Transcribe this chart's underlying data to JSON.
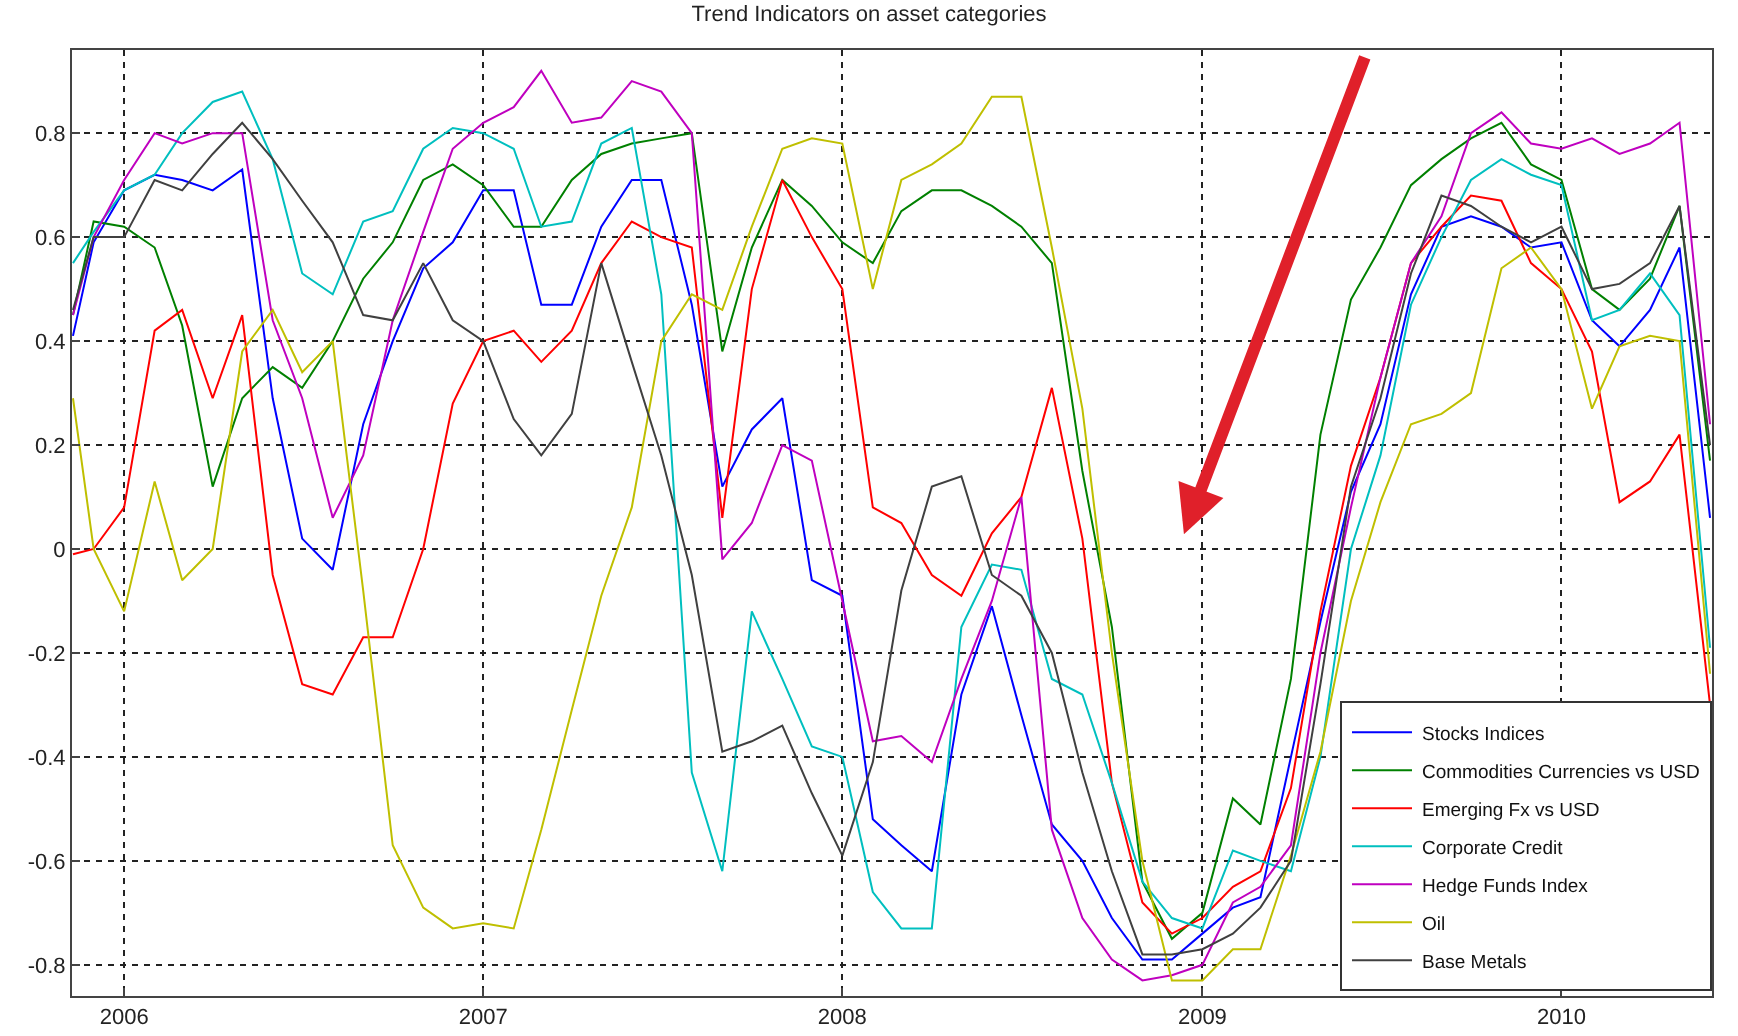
{
  "chart_data": {
    "type": "line",
    "title": "Trend Indicators on asset categories",
    "x": [
      "2005-11-10",
      "2005-12-01",
      "2006-01-01",
      "2006-02-01",
      "2006-03-01",
      "2006-04-01",
      "2006-05-01",
      "2006-06-01",
      "2006-07-01",
      "2006-08-01",
      "2006-09-01",
      "2006-10-01",
      "2006-11-01",
      "2006-12-01",
      "2007-01-01",
      "2007-02-01",
      "2007-03-01",
      "2007-04-01",
      "2007-05-01",
      "2007-06-01",
      "2007-07-01",
      "2007-08-01",
      "2007-09-01",
      "2007-10-01",
      "2007-11-01",
      "2007-12-01",
      "2008-01-01",
      "2008-02-01",
      "2008-03-01",
      "2008-04-01",
      "2008-05-01",
      "2008-06-01",
      "2008-07-01",
      "2008-08-01",
      "2008-09-01",
      "2008-10-01",
      "2008-11-01",
      "2008-12-01",
      "2009-01-01",
      "2009-02-01",
      "2009-03-01",
      "2009-04-01",
      "2009-05-01",
      "2009-06-01",
      "2009-07-01",
      "2009-08-01",
      "2009-09-01",
      "2009-10-01",
      "2009-11-01",
      "2009-12-01",
      "2010-01-01",
      "2010-02-01",
      "2010-03-01",
      "2010-04-01",
      "2010-05-01",
      "2010-06-01"
    ],
    "series": [
      {
        "name": "Stocks Indices",
        "color": "#0000ff",
        "values": [
          0.41,
          0.59,
          0.69,
          0.72,
          0.71,
          0.69,
          0.73,
          0.29,
          0.02,
          -0.04,
          0.24,
          0.4,
          0.54,
          0.59,
          0.69,
          0.69,
          0.47,
          0.47,
          0.62,
          0.71,
          0.71,
          0.47,
          0.12,
          0.23,
          0.29,
          -0.06,
          -0.09,
          -0.52,
          -0.57,
          -0.62,
          -0.28,
          -0.11,
          -0.32,
          -0.53,
          -0.6,
          -0.71,
          -0.79,
          -0.79,
          -0.74,
          -0.69,
          -0.67,
          -0.4,
          -0.14,
          0.11,
          0.24,
          0.49,
          0.62,
          0.64,
          0.62,
          0.58,
          0.59,
          0.44,
          0.39,
          0.46,
          0.58,
          0.06
        ]
      },
      {
        "name": "Commodities Currencies vs USD",
        "color": "#008000",
        "values": [
          0.45,
          0.63,
          0.62,
          0.58,
          0.43,
          0.12,
          0.29,
          0.35,
          0.31,
          0.4,
          0.52,
          0.59,
          0.71,
          0.74,
          0.7,
          0.62,
          0.62,
          0.71,
          0.76,
          0.78,
          0.79,
          0.8,
          0.38,
          0.58,
          0.71,
          0.66,
          0.59,
          0.55,
          0.65,
          0.69,
          0.69,
          0.66,
          0.62,
          0.55,
          0.15,
          -0.15,
          -0.64,
          -0.75,
          -0.7,
          -0.48,
          -0.53,
          -0.25,
          0.22,
          0.48,
          0.58,
          0.7,
          0.75,
          0.79,
          0.82,
          0.74,
          0.71,
          0.5,
          0.46,
          0.52,
          0.66,
          0.17
        ]
      },
      {
        "name": "Emerging Fx vs USD",
        "color": "#ff0000",
        "values": [
          -0.01,
          0.0,
          0.08,
          0.42,
          0.46,
          0.29,
          0.45,
          -0.05,
          -0.26,
          -0.28,
          -0.17,
          -0.17,
          0.0,
          0.28,
          0.4,
          0.42,
          0.36,
          0.42,
          0.55,
          0.63,
          0.6,
          0.58,
          0.06,
          0.5,
          0.71,
          0.6,
          0.5,
          0.08,
          0.05,
          -0.05,
          -0.09,
          0.03,
          0.1,
          0.31,
          0.02,
          -0.45,
          -0.68,
          -0.74,
          -0.71,
          -0.65,
          -0.62,
          -0.46,
          -0.12,
          0.16,
          0.33,
          0.55,
          0.62,
          0.68,
          0.67,
          0.55,
          0.5,
          0.38,
          0.09,
          0.13,
          0.22,
          -0.3
        ]
      },
      {
        "name": "Corporate Credit",
        "color": "#00bfbf",
        "values": [
          0.55,
          0.61,
          0.69,
          0.72,
          0.8,
          0.86,
          0.88,
          0.75,
          0.53,
          0.49,
          0.63,
          0.65,
          0.77,
          0.81,
          0.8,
          0.77,
          0.62,
          0.63,
          0.78,
          0.81,
          0.49,
          -0.43,
          -0.62,
          -0.12,
          -0.25,
          -0.38,
          -0.4,
          -0.66,
          -0.73,
          -0.73,
          -0.15,
          -0.03,
          -0.04,
          -0.25,
          -0.28,
          -0.45,
          -0.64,
          -0.71,
          -0.73,
          -0.58,
          -0.6,
          -0.62,
          -0.4,
          0.0,
          0.18,
          0.47,
          0.6,
          0.71,
          0.75,
          0.72,
          0.7,
          0.44,
          0.46,
          0.53,
          0.45,
          -0.19
        ]
      },
      {
        "name": "Hedge Funds Index",
        "color": "#bf00bf",
        "values": [
          0.45,
          0.6,
          0.71,
          0.8,
          0.78,
          0.8,
          0.8,
          0.44,
          0.29,
          0.06,
          0.18,
          0.44,
          0.61,
          0.77,
          0.82,
          0.85,
          0.92,
          0.82,
          0.83,
          0.9,
          0.88,
          0.8,
          -0.02,
          0.05,
          0.2,
          0.17,
          -0.1,
          -0.37,
          -0.36,
          -0.41,
          -0.25,
          -0.1,
          0.1,
          -0.54,
          -0.71,
          -0.79,
          -0.83,
          -0.82,
          -0.8,
          -0.68,
          -0.65,
          -0.57,
          -0.2,
          0.08,
          0.33,
          0.55,
          0.64,
          0.8,
          0.84,
          0.78,
          0.77,
          0.79,
          0.76,
          0.78,
          0.82,
          0.24
        ]
      },
      {
        "name": "Oil",
        "color": "#bfbf00",
        "values": [
          0.29,
          0.0,
          -0.12,
          0.13,
          -0.06,
          0.0,
          0.38,
          0.46,
          0.34,
          0.4,
          -0.08,
          -0.57,
          -0.69,
          -0.73,
          -0.72,
          -0.73,
          -0.54,
          -0.31,
          -0.09,
          0.08,
          0.4,
          0.49,
          0.46,
          0.62,
          0.77,
          0.79,
          0.78,
          0.5,
          0.71,
          0.74,
          0.78,
          0.87,
          0.87,
          0.58,
          0.27,
          -0.2,
          -0.6,
          -0.83,
          -0.83,
          -0.77,
          -0.77,
          -0.59,
          -0.39,
          -0.1,
          0.09,
          0.24,
          0.26,
          0.3,
          0.54,
          0.58,
          0.5,
          0.27,
          0.39,
          0.41,
          0.4,
          -0.24
        ]
      },
      {
        "name": "Base Metals",
        "color": "#404040",
        "values": [
          0.46,
          0.6,
          0.6,
          0.71,
          0.69,
          0.76,
          0.82,
          0.75,
          0.67,
          0.59,
          0.45,
          0.44,
          0.55,
          0.44,
          0.4,
          0.25,
          0.18,
          0.26,
          0.55,
          0.36,
          0.18,
          -0.05,
          -0.39,
          -0.37,
          -0.34,
          -0.47,
          -0.59,
          -0.41,
          -0.08,
          0.12,
          0.14,
          -0.05,
          -0.09,
          -0.2,
          -0.43,
          -0.62,
          -0.78,
          -0.78,
          -0.77,
          -0.74,
          -0.69,
          -0.6,
          -0.26,
          0.12,
          0.29,
          0.53,
          0.68,
          0.66,
          0.62,
          0.59,
          0.62,
          0.5,
          0.51,
          0.55,
          0.66,
          0.2
        ]
      }
    ],
    "xlim": [
      "2005-11-09",
      "2010-06-03"
    ],
    "xticks": [
      {
        "value": "2006-01-01",
        "label": "2006"
      },
      {
        "value": "2007-01-01",
        "label": "2007"
      },
      {
        "value": "2008-01-01",
        "label": "2008"
      },
      {
        "value": "2009-01-01",
        "label": "2009"
      },
      {
        "value": "2010-01-01",
        "label": "2010"
      }
    ],
    "ylim": [
      -0.86,
      0.96
    ],
    "yticks": [
      -0.8,
      -0.6,
      -0.4,
      -0.2,
      0,
      0.2,
      0.4,
      0.6,
      0.8
    ],
    "grid": true,
    "legend": "bottom right",
    "marker": "none",
    "line_style": "solid"
  }
}
